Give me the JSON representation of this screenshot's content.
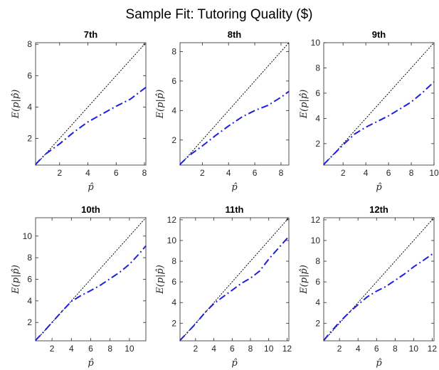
{
  "title": "Sample Fit: Tutoring Quality ($)",
  "colors": {
    "fit_line": "#1f1fe0",
    "diagonal": "#000000",
    "axes": "#262626"
  },
  "chart_data": [
    {
      "type": "line",
      "title": "7th",
      "xlabel": "p̂",
      "ylabel": "E(p|p̂)",
      "xlim": [
        0.3,
        8.1
      ],
      "ylim": [
        0.3,
        8.1
      ],
      "xticks": [
        "2",
        "4",
        "6",
        "8"
      ],
      "xtick_values": [
        2,
        4,
        6,
        8
      ],
      "yticks": [
        "2",
        "4",
        "6",
        "8"
      ],
      "ytick_values": [
        2,
        4,
        6,
        8
      ],
      "grid": false,
      "series": [
        {
          "style": "dotted",
          "color": "#000000",
          "x": [
            0.3,
            8.1
          ],
          "y": [
            0.3,
            8.1
          ]
        },
        {
          "style": "dash-dot",
          "color": "#1f1fe0",
          "x": [
            0.3,
            1.0,
            2.0,
            3.0,
            4.0,
            5.0,
            6.0,
            7.0,
            8.1
          ],
          "y": [
            0.35,
            1.0,
            1.65,
            2.4,
            3.05,
            3.55,
            4.05,
            4.5,
            5.25
          ]
        }
      ]
    },
    {
      "type": "line",
      "title": "8th",
      "xlabel": "p̂",
      "ylabel": "E(p|p̂)",
      "xlim": [
        0.3,
        8.6
      ],
      "ylim": [
        0.3,
        8.6
      ],
      "xticks": [
        "2",
        "4",
        "6",
        "8"
      ],
      "xtick_values": [
        2,
        4,
        6,
        8
      ],
      "yticks": [
        "2",
        "4",
        "6",
        "8"
      ],
      "ytick_values": [
        2,
        4,
        6,
        8
      ],
      "grid": false,
      "series": [
        {
          "style": "dotted",
          "color": "#000000",
          "x": [
            0.3,
            8.6
          ],
          "y": [
            0.3,
            8.6
          ]
        },
        {
          "style": "dash-dot",
          "color": "#1f1fe0",
          "x": [
            0.3,
            1.0,
            2.0,
            3.0,
            4.0,
            5.0,
            6.0,
            7.0,
            8.0,
            8.6
          ],
          "y": [
            0.35,
            0.95,
            1.6,
            2.3,
            2.95,
            3.55,
            4.0,
            4.35,
            4.9,
            5.3
          ]
        }
      ]
    },
    {
      "type": "line",
      "title": "9th",
      "xlabel": "p̂",
      "ylabel": "E(p|p̂)",
      "xlim": [
        0.3,
        10
      ],
      "ylim": [
        0.3,
        10
      ],
      "xticks": [
        "2",
        "4",
        "6",
        "8",
        "10"
      ],
      "xtick_values": [
        2,
        4,
        6,
        8,
        10
      ],
      "yticks": [
        "2",
        "4",
        "6",
        "8",
        "10"
      ],
      "ytick_values": [
        2,
        4,
        6,
        8,
        10
      ],
      "grid": false,
      "series": [
        {
          "style": "dotted",
          "color": "#000000",
          "x": [
            0.3,
            10
          ],
          "y": [
            0.3,
            10
          ]
        },
        {
          "style": "dash-dot",
          "color": "#1f1fe0",
          "x": [
            0.3,
            1.0,
            2.0,
            3.0,
            4.0,
            5.0,
            6.0,
            7.0,
            8.0,
            9.0,
            10.0
          ],
          "y": [
            0.35,
            1.0,
            1.9,
            2.75,
            3.3,
            3.75,
            4.2,
            4.75,
            5.3,
            6.05,
            6.9
          ]
        }
      ]
    },
    {
      "type": "line",
      "title": "10th",
      "xlabel": "p̂",
      "ylabel": "E(p|p̂)",
      "xlim": [
        0.3,
        11.7
      ],
      "ylim": [
        0.3,
        11.7
      ],
      "xticks": [
        "2",
        "4",
        "6",
        "8",
        "10"
      ],
      "xtick_values": [
        2,
        4,
        6,
        8,
        10
      ],
      "yticks": [
        "2",
        "4",
        "6",
        "8",
        "10"
      ],
      "ytick_values": [
        2,
        4,
        6,
        8,
        10
      ],
      "grid": false,
      "series": [
        {
          "style": "dotted",
          "color": "#000000",
          "x": [
            0.3,
            11.7
          ],
          "y": [
            0.3,
            11.7
          ]
        },
        {
          "style": "dash-dot",
          "color": "#1f1fe0",
          "x": [
            0.3,
            1.0,
            2.0,
            3.0,
            4.0,
            5.0,
            6.0,
            7.0,
            8.0,
            9.0,
            10.0,
            11.0,
            11.7
          ],
          "y": [
            0.35,
            1.0,
            2.0,
            3.0,
            3.95,
            4.5,
            4.95,
            5.45,
            6.05,
            6.65,
            7.4,
            8.35,
            9.1
          ]
        }
      ]
    },
    {
      "type": "line",
      "title": "11th",
      "xlabel": "p̂",
      "ylabel": "E(p|p̂)",
      "xlim": [
        0.3,
        12.2
      ],
      "ylim": [
        0.3,
        12.2
      ],
      "xticks": [
        "2",
        "4",
        "6",
        "8",
        "10",
        "12"
      ],
      "xtick_values": [
        2,
        4,
        6,
        8,
        10,
        12
      ],
      "yticks": [
        "2",
        "4",
        "6",
        "8",
        "10",
        "12"
      ],
      "ytick_values": [
        2,
        4,
        6,
        8,
        10,
        12
      ],
      "grid": false,
      "series": [
        {
          "style": "dotted",
          "color": "#000000",
          "x": [
            0.3,
            12.2
          ],
          "y": [
            0.3,
            12.2
          ]
        },
        {
          "style": "dash-dot",
          "color": "#1f1fe0",
          "x": [
            0.3,
            1.0,
            2.0,
            3.0,
            4.0,
            5.0,
            6.0,
            7.0,
            8.0,
            9.0,
            10.0,
            11.0,
            12.2
          ],
          "y": [
            0.35,
            1.0,
            1.95,
            3.0,
            3.9,
            4.55,
            5.2,
            5.85,
            6.35,
            7.05,
            8.2,
            9.2,
            10.4
          ]
        }
      ]
    },
    {
      "type": "line",
      "title": "12th",
      "xlabel": "p̂",
      "ylabel": "E(p|p̂)",
      "xlim": [
        0.3,
        12.2
      ],
      "ylim": [
        0.3,
        12.2
      ],
      "xticks": [
        "2",
        "4",
        "6",
        "8",
        "10",
        "12"
      ],
      "xtick_values": [
        2,
        4,
        6,
        8,
        10,
        12
      ],
      "yticks": [
        "2",
        "4",
        "6",
        "8",
        "10",
        "12"
      ],
      "ytick_values": [
        2,
        4,
        6,
        8,
        10,
        12
      ],
      "grid": false,
      "series": [
        {
          "style": "dotted",
          "color": "#000000",
          "x": [
            0.3,
            12.2
          ],
          "y": [
            0.3,
            12.2
          ]
        },
        {
          "style": "dash-dot",
          "color": "#1f1fe0",
          "x": [
            0.3,
            1.0,
            2.0,
            3.0,
            4.0,
            5.0,
            6.0,
            7.0,
            8.0,
            9.0,
            10.0,
            11.0,
            12.2
          ],
          "y": [
            0.35,
            1.1,
            2.1,
            3.0,
            3.8,
            4.55,
            5.1,
            5.55,
            6.15,
            6.75,
            7.45,
            8.05,
            8.8
          ]
        }
      ]
    }
  ]
}
